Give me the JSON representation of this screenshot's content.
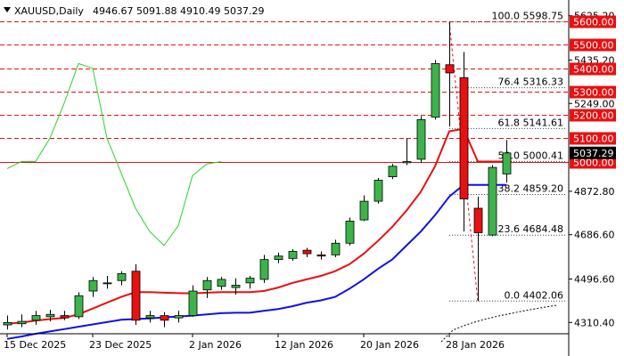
{
  "header": {
    "symbol": "XAUUSD,Daily",
    "ohlc": "4946.67 5091.88 4910.49 5037.29"
  },
  "colors": {
    "bull": "#3db44b",
    "bear": "#e81010",
    "level": "#e81010",
    "ma_red": "#e81010",
    "ma_blue": "#1010e8",
    "osc": "#28d428",
    "price_badge": "#000000"
  },
  "price_badge": "5037.29",
  "resistance_levels": [
    "5600.00",
    "5500.00",
    "5400.00",
    "5300.00",
    "5200.00",
    "5100.00",
    "5000.00"
  ],
  "fib_levels": [
    {
      "label": "100.0 5598.75",
      "value": 5598.75
    },
    {
      "label": "76.4 5316.33",
      "value": 5316.33
    },
    {
      "label": "61.8 5141.61",
      "value": 5141.61
    },
    {
      "label": "50.0 5000.41",
      "value": 5000.41
    },
    {
      "label": "38.2 4859.20",
      "value": 4859.2
    },
    {
      "label": "23.6 4684.48",
      "value": 4684.48
    },
    {
      "label": "0.0 4402.06",
      "value": 4402.06
    }
  ],
  "chart_data": {
    "type": "candlestick",
    "title": "XAUUSD,Daily",
    "y_axis_ticks": [
      "5625.20",
      "5435.20",
      "5249.00",
      "4872.80",
      "4686.60",
      "4496.60",
      "4310.40"
    ],
    "x_axis_labels": [
      "15 Dec 2025",
      "23 Dec 2025",
      "2 Jan 2026",
      "12 Jan 2026",
      "20 Jan 2026",
      "28 Jan 2026"
    ],
    "ylim": [
      4262,
      5662
    ],
    "candles": [
      {
        "o": 4300,
        "h": 4340,
        "l": 4280,
        "c": 4310
      },
      {
        "o": 4305,
        "h": 4345,
        "l": 4290,
        "c": 4315
      },
      {
        "o": 4320,
        "h": 4360,
        "l": 4300,
        "c": 4340
      },
      {
        "o": 4335,
        "h": 4365,
        "l": 4315,
        "c": 4345
      },
      {
        "o": 4340,
        "h": 4360,
        "l": 4320,
        "c": 4330
      },
      {
        "o": 4335,
        "h": 4440,
        "l": 4325,
        "c": 4425
      },
      {
        "o": 4445,
        "h": 4505,
        "l": 4420,
        "c": 4490
      },
      {
        "o": 4480,
        "h": 4510,
        "l": 4455,
        "c": 4480
      },
      {
        "o": 4490,
        "h": 4530,
        "l": 4470,
        "c": 4520
      },
      {
        "o": 4530,
        "h": 4560,
        "l": 4300,
        "c": 4320
      },
      {
        "o": 4330,
        "h": 4360,
        "l": 4310,
        "c": 4340
      },
      {
        "o": 4340,
        "h": 4355,
        "l": 4290,
        "c": 4320
      },
      {
        "o": 4330,
        "h": 4360,
        "l": 4310,
        "c": 4340
      },
      {
        "o": 4340,
        "h": 4470,
        "l": 4335,
        "c": 4445
      },
      {
        "o": 4450,
        "h": 4505,
        "l": 4415,
        "c": 4490
      },
      {
        "o": 4465,
        "h": 4505,
        "l": 4450,
        "c": 4495
      },
      {
        "o": 4460,
        "h": 4500,
        "l": 4430,
        "c": 4470
      },
      {
        "o": 4480,
        "h": 4510,
        "l": 4455,
        "c": 4500
      },
      {
        "o": 4495,
        "h": 4600,
        "l": 4480,
        "c": 4580
      },
      {
        "o": 4580,
        "h": 4610,
        "l": 4565,
        "c": 4595
      },
      {
        "o": 4585,
        "h": 4625,
        "l": 4575,
        "c": 4615
      },
      {
        "o": 4620,
        "h": 4630,
        "l": 4590,
        "c": 4605
      },
      {
        "o": 4600,
        "h": 4615,
        "l": 4580,
        "c": 4595
      },
      {
        "o": 4600,
        "h": 4665,
        "l": 4590,
        "c": 4650
      },
      {
        "o": 4650,
        "h": 4760,
        "l": 4640,
        "c": 4745
      },
      {
        "o": 4750,
        "h": 4855,
        "l": 4745,
        "c": 4830
      },
      {
        "o": 4830,
        "h": 4930,
        "l": 4820,
        "c": 4920
      },
      {
        "o": 4935,
        "h": 4990,
        "l": 4925,
        "c": 4980
      },
      {
        "o": 4995,
        "h": 5100,
        "l": 4985,
        "c": 5000
      },
      {
        "o": 5010,
        "h": 5195,
        "l": 4995,
        "c": 5180
      },
      {
        "o": 5190,
        "h": 5435,
        "l": 5180,
        "c": 5420
      },
      {
        "o": 5415,
        "h": 5598,
        "l": 5150,
        "c": 5380
      },
      {
        "o": 5360,
        "h": 5470,
        "l": 4700,
        "c": 4840
      },
      {
        "o": 4800,
        "h": 4850,
        "l": 4402,
        "c": 4695
      },
      {
        "o": 4685,
        "h": 4985,
        "l": 4680,
        "c": 4975
      },
      {
        "o": 4947,
        "h": 5092,
        "l": 4910,
        "c": 5037
      }
    ],
    "ma_red": [
      4305,
      4310,
      4318,
      4325,
      4330,
      4345,
      4370,
      4395,
      4420,
      4440,
      4440,
      4438,
      4436,
      4435,
      4438,
      4440,
      4440,
      4440,
      4445,
      4460,
      4480,
      4495,
      4510,
      4530,
      4560,
      4605,
      4660,
      4720,
      4790,
      4870,
      4980,
      5130,
      5140,
      5000,
      5000,
      5000
    ],
    "ma_blue": [
      4240,
      4250,
      4262,
      4272,
      4282,
      4292,
      4302,
      4312,
      4322,
      4325,
      4328,
      4332,
      4336,
      4340,
      4345,
      4350,
      4352,
      4352,
      4360,
      4368,
      4380,
      4395,
      4405,
      4420,
      4455,
      4495,
      4540,
      4580,
      4640,
      4700,
      4770,
      4850,
      4900,
      4900,
      4900,
      4900
    ],
    "osc": [
      4970,
      5000,
      5000,
      5100,
      5250,
      5420,
      5400,
      5100,
      4950,
      4800,
      4700,
      4640,
      4725,
      4940,
      4990,
      5000
    ],
    "fib_dashed_outline": [
      [
        31,
        5598.75
      ],
      [
        33,
        4402.06
      ]
    ]
  }
}
